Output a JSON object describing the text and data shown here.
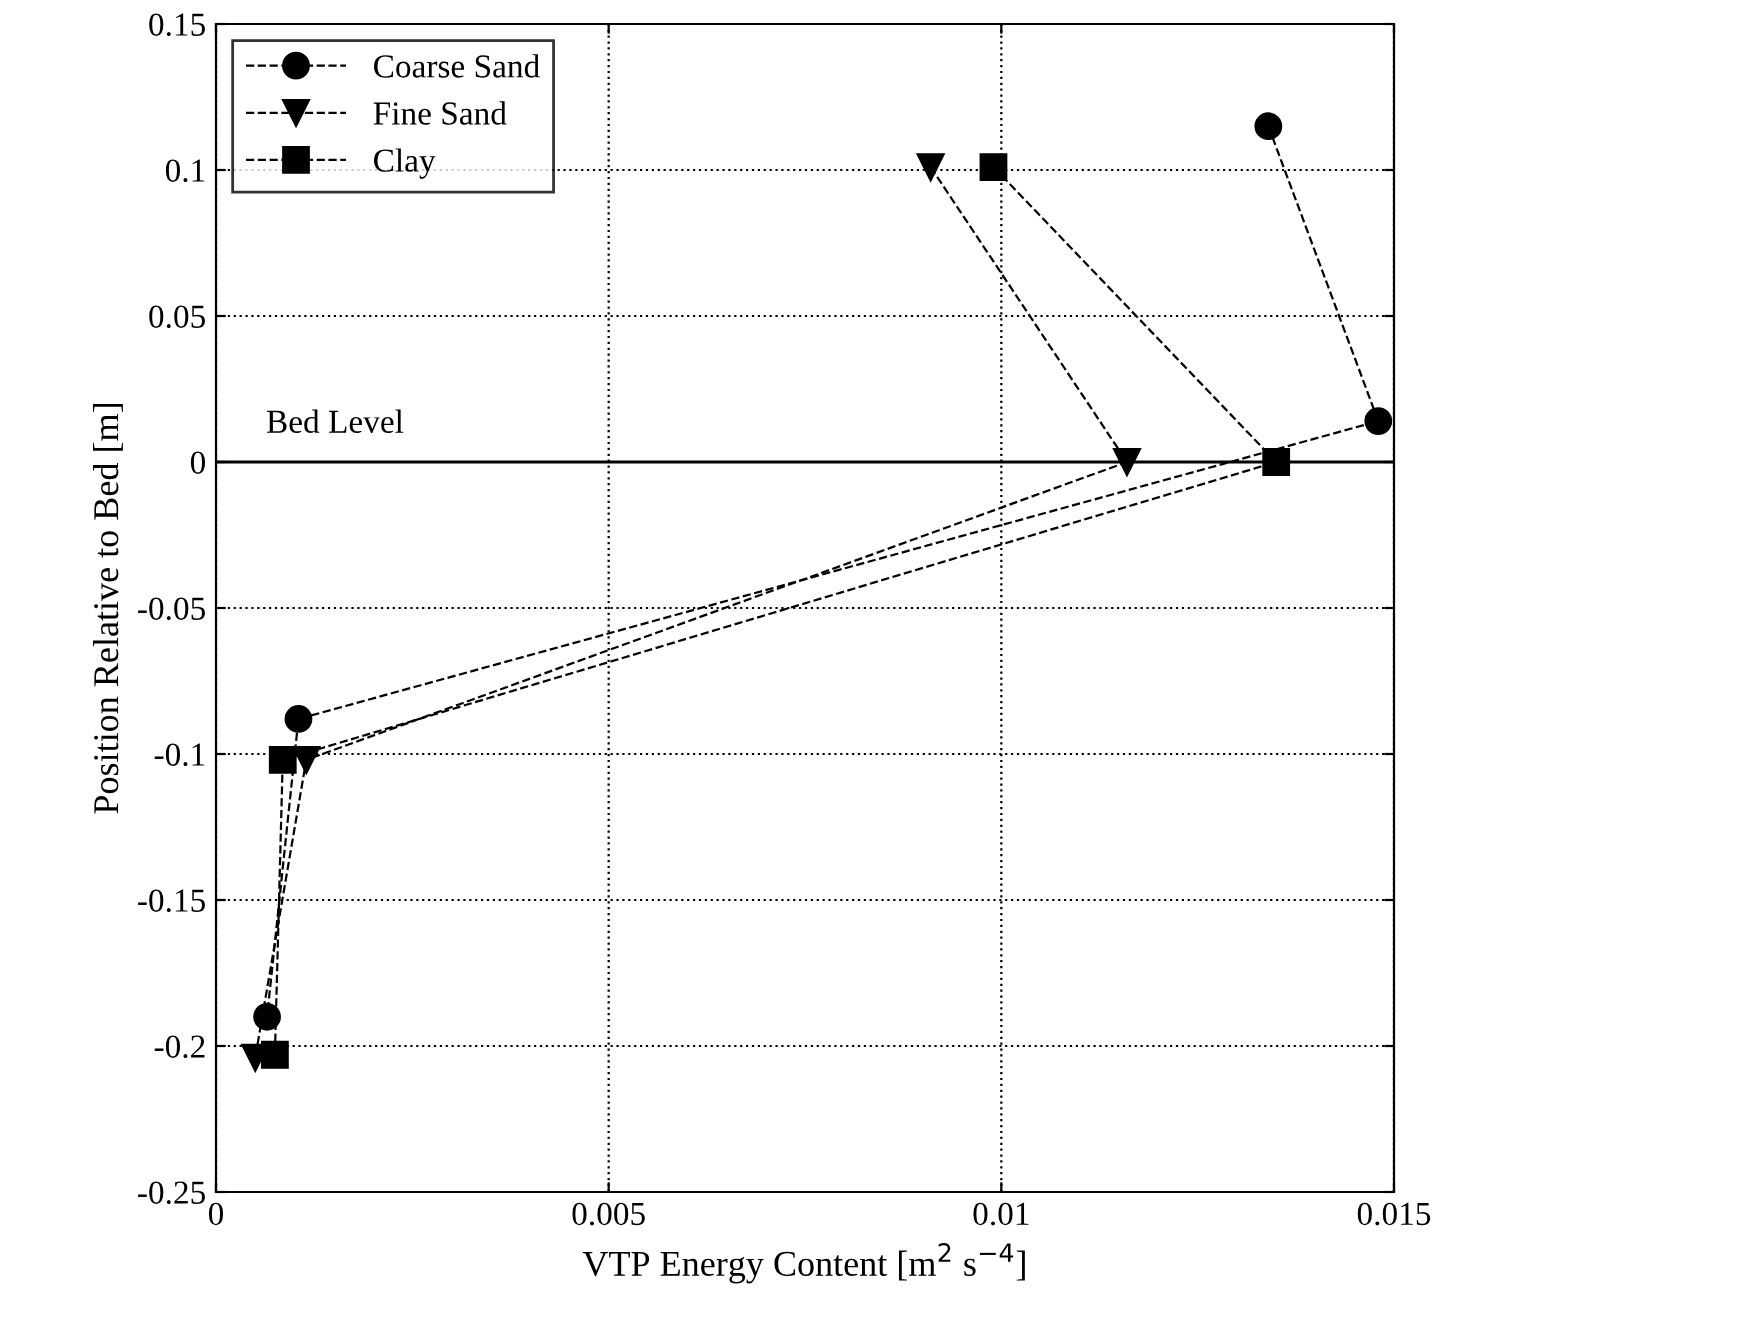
{
  "chart_data": {
    "type": "line",
    "xlabel": "VTP Energy Content [m$^{2}$ s$^{−4}$]",
    "ylabel": "Position Relative to Bed [m]",
    "series": [
      {
        "name": "Coarse Sand",
        "color": "#000000",
        "marker": "circle",
        "x": [
          0.0134,
          0.0148,
          0.00105,
          0.00065
        ],
        "values": [
          0.115,
          0.014,
          -0.088,
          -0.19
        ]
      },
      {
        "name": "Fine Sand",
        "color": "#000000",
        "marker": "triangle",
        "x": [
          0.0091,
          0.0116,
          0.00115,
          0.0005
        ],
        "values": [
          0.101,
          0,
          -0.102,
          -0.204
        ]
      },
      {
        "name": "Clay",
        "color": "#000000",
        "marker": "square",
        "x": [
          0.0099,
          0.0135,
          0.00085,
          0.00075
        ],
        "values": [
          0.101,
          0,
          -0.102,
          -0.203
        ]
      }
    ],
    "line_style": "dashed",
    "xlim": [
      0,
      0.015
    ],
    "xticks": [
      0,
      0.005,
      0.01,
      0.015
    ],
    "ylim": [
      -0.25,
      0.15
    ],
    "yticks": [
      -0.25,
      -0.2,
      -0.15,
      -0.1,
      -0.05,
      0,
      0.05,
      0.1,
      0.15
    ],
    "ref_lines": [
      {
        "axis": "y",
        "value": 0,
        "label": "Bed Level",
        "color": "#000000",
        "line_style": "solid"
      }
    ],
    "grid": true,
    "legend": "top left"
  }
}
